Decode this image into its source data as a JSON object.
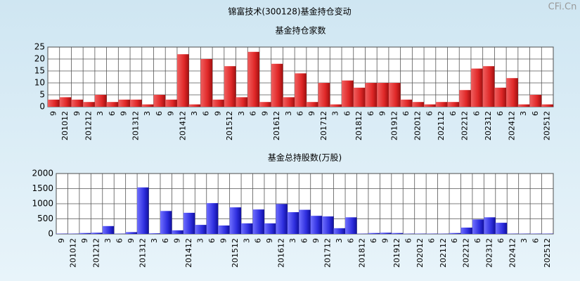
{
  "title": "锦富技术(300128)基金持仓变动",
  "watermark": "CFi.Cn",
  "chart_data": [
    {
      "type": "bar",
      "title": "基金持仓家数",
      "color": "#e02828",
      "categories": [
        "9",
        "201012",
        "9",
        "201212",
        "3",
        "6",
        "9",
        "201312",
        "3",
        "6",
        "9",
        "201412",
        "3",
        "6",
        "9",
        "201512",
        "3",
        "6",
        "9",
        "201612",
        "3",
        "6",
        "9",
        "201712",
        "3",
        "6",
        "201812",
        "6",
        "9",
        "201912",
        "6",
        "202012",
        "6",
        "202112",
        "6",
        "202212",
        "6",
        "202312",
        "6",
        "202412",
        "3",
        "6",
        "202512"
      ],
      "values": [
        3,
        4,
        3,
        2,
        5,
        2,
        3,
        3,
        1,
        5,
        3,
        22,
        1,
        20,
        3,
        17,
        4,
        23,
        2,
        18,
        4,
        14,
        2,
        10,
        1,
        11,
        8,
        10,
        10,
        10,
        3,
        2,
        1,
        2,
        2,
        7,
        16,
        17,
        8,
        12,
        1,
        5,
        1
      ],
      "ylim": [
        0,
        25
      ],
      "yticks": [
        0,
        5,
        10,
        15,
        20,
        25
      ],
      "grid": true
    },
    {
      "type": "bar",
      "title": "基金总持股数(万股)",
      "color": "#3030e0",
      "categories": [
        "9",
        "201012",
        "9",
        "201212",
        "3",
        "6",
        "9",
        "201312",
        "3",
        "6",
        "9",
        "201412",
        "3",
        "6",
        "9",
        "201512",
        "3",
        "6",
        "9",
        "201612",
        "3",
        "6",
        "9",
        "201712",
        "3",
        "6",
        "201812",
        "6",
        "9",
        "201912",
        "6",
        "202012",
        "6",
        "202112",
        "6",
        "202212",
        "6",
        "202312",
        "6",
        "202412",
        "3",
        "6",
        "202512"
      ],
      "values": [
        10,
        10,
        30,
        40,
        260,
        10,
        60,
        1540,
        20,
        760,
        120,
        700,
        300,
        1020,
        280,
        880,
        350,
        810,
        350,
        990,
        720,
        800,
        600,
        580,
        190,
        550,
        10,
        30,
        40,
        30,
        10,
        10,
        10,
        10,
        30,
        210,
        480,
        550,
        370,
        10,
        10,
        10,
        10
      ],
      "ylim": [
        0,
        2000
      ],
      "yticks": [
        0,
        500,
        1000,
        1500,
        2000
      ],
      "grid": true
    }
  ]
}
